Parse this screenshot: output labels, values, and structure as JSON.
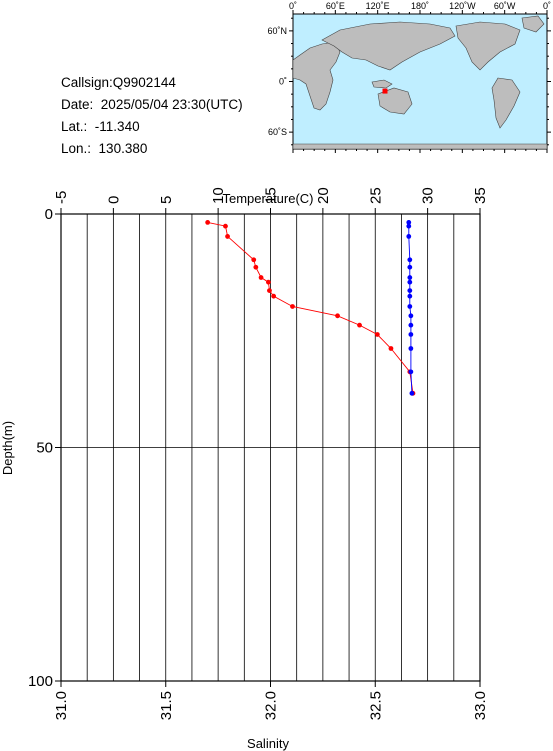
{
  "info": {
    "callsign_label": "Callsign:",
    "callsign": "Q9902144",
    "date_label": "Date:",
    "date": "2025/05/04 23:30(UTC)",
    "lat_label": "Lat.:",
    "lat": "-11.340",
    "lon_label": "Lon.:",
    "lon": "130.380"
  },
  "map": {
    "top_ticks": [
      "0˚",
      "60˚E",
      "120˚E",
      "180˚",
      "120˚W",
      "60˚W",
      "0˚"
    ],
    "left_ticks": [
      "60˚N",
      "0˚",
      "60˚S"
    ],
    "float_position": {
      "lat": -11.34,
      "lon": 130.38
    },
    "colors": {
      "ocean": "#bfeeff",
      "land": "#bdbdbd",
      "marker": "#ff0000"
    }
  },
  "chart_data": {
    "type": "line",
    "xlabel_top": "Temperature(C)",
    "xlabel_bottom": "Salinity",
    "ylabel": "Depth(m)",
    "temperature_axis": {
      "range": [
        -5,
        35
      ],
      "ticks": [
        "-5",
        "0",
        "5",
        "10",
        "15",
        "20",
        "25",
        "30",
        "35"
      ]
    },
    "salinity_axis": {
      "range": [
        31.0,
        33.0
      ],
      "ticks": [
        "31.0",
        "31.5",
        "32.0",
        "32.5",
        "33.0"
      ]
    },
    "depth_axis": {
      "range": [
        0,
        100
      ],
      "ticks": [
        "0",
        "50",
        "100"
      ],
      "inverted": true
    },
    "series": [
      {
        "color": "#ff0000",
        "axis": "temperature",
        "points": [
          {
            "x": 9.0,
            "y": 1.8
          },
          {
            "x": 10.7,
            "y": 2.6
          },
          {
            "x": 10.9,
            "y": 4.8
          },
          {
            "x": 13.4,
            "y": 9.8
          },
          {
            "x": 13.6,
            "y": 11.4
          },
          {
            "x": 14.1,
            "y": 13.6
          },
          {
            "x": 14.8,
            "y": 14.6
          },
          {
            "x": 14.9,
            "y": 16.4
          },
          {
            "x": 15.3,
            "y": 17.6
          },
          {
            "x": 17.1,
            "y": 19.8
          },
          {
            "x": 21.4,
            "y": 21.8
          },
          {
            "x": 23.5,
            "y": 23.8
          },
          {
            "x": 25.2,
            "y": 25.8
          },
          {
            "x": 26.5,
            "y": 28.8
          },
          {
            "x": 28.3,
            "y": 33.8
          },
          {
            "x": 28.6,
            "y": 38.4
          }
        ]
      },
      {
        "color": "#0000ff",
        "axis": "salinity",
        "points": [
          {
            "x": 32.66,
            "y": 1.8
          },
          {
            "x": 32.66,
            "y": 2.6
          },
          {
            "x": 32.66,
            "y": 4.8
          },
          {
            "x": 32.665,
            "y": 9.8
          },
          {
            "x": 32.665,
            "y": 11.4
          },
          {
            "x": 32.665,
            "y": 13.6
          },
          {
            "x": 32.665,
            "y": 14.6
          },
          {
            "x": 32.665,
            "y": 16.4
          },
          {
            "x": 32.665,
            "y": 17.6
          },
          {
            "x": 32.665,
            "y": 19.8
          },
          {
            "x": 32.67,
            "y": 21.8
          },
          {
            "x": 32.67,
            "y": 23.8
          },
          {
            "x": 32.67,
            "y": 25.8
          },
          {
            "x": 32.67,
            "y": 28.8
          },
          {
            "x": 32.67,
            "y": 33.8
          },
          {
            "x": 32.675,
            "y": 38.4
          }
        ]
      }
    ],
    "grid": {
      "temperature_minor_step": 2.5,
      "depth_major": [
        50
      ]
    }
  }
}
